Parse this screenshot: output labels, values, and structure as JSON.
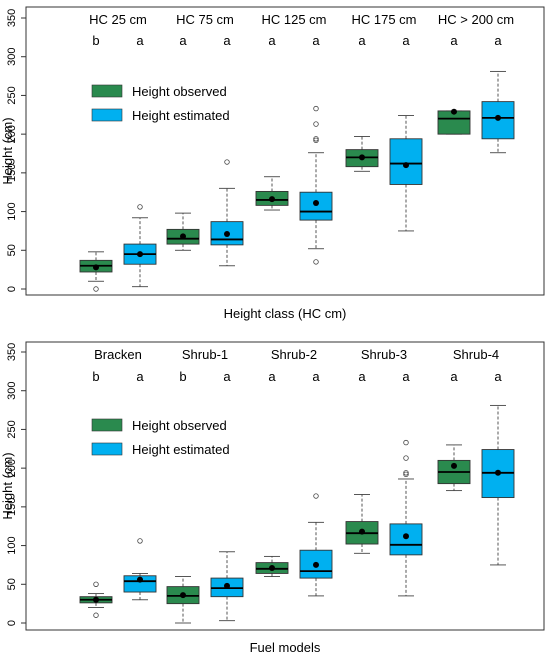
{
  "colors": {
    "observed": "#2a8a4e",
    "estimated": "#00b0f0",
    "frame": "#333333"
  },
  "chart_data": [
    {
      "type": "boxplot",
      "xlabel": "Height class (HC cm)",
      "ylabel": "Height (cm)",
      "ylim": [
        0,
        350
      ],
      "yticks": [
        0,
        50,
        100,
        150,
        200,
        250,
        300,
        350
      ],
      "categories": [
        "HC 25 cm",
        "HC 75 cm",
        "HC 125 cm",
        "HC 175 cm",
        "HC > 200 cm"
      ],
      "series": [
        {
          "name": "Height observed",
          "color_key": "observed",
          "groups": [
            {
              "letter": "b",
              "whisker_low": 10,
              "q1": 22,
              "median": 30,
              "q3": 37,
              "whisker_high": 48,
              "mean": 28,
              "outliers": [
                0
              ]
            },
            {
              "letter": "a",
              "whisker_low": 50,
              "q1": 58,
              "median": 65,
              "q3": 77,
              "whisker_high": 98,
              "mean": 68,
              "outliers": []
            },
            {
              "letter": "a",
              "whisker_low": 102,
              "q1": 108,
              "median": 115,
              "q3": 126,
              "whisker_high": 145,
              "mean": 116,
              "outliers": []
            },
            {
              "letter": "a",
              "whisker_low": 152,
              "q1": 158,
              "median": 170,
              "q3": 180,
              "whisker_high": 197,
              "mean": 170,
              "outliers": []
            },
            {
              "letter": "a",
              "whisker_low": 200,
              "q1": 200,
              "median": 220,
              "q3": 230,
              "whisker_high": 230,
              "mean": 229,
              "outliers": []
            }
          ]
        },
        {
          "name": "Height estimated",
          "color_key": "estimated",
          "groups": [
            {
              "letter": "a",
              "whisker_low": 3,
              "q1": 32,
              "median": 45,
              "q3": 58,
              "whisker_high": 92,
              "mean": 45,
              "outliers": [
                106
              ]
            },
            {
              "letter": "a",
              "whisker_low": 30,
              "q1": 57,
              "median": 64,
              "q3": 87,
              "whisker_high": 130,
              "mean": 71,
              "outliers": [
                164
              ]
            },
            {
              "letter": "a",
              "whisker_low": 52,
              "q1": 89,
              "median": 100,
              "q3": 125,
              "whisker_high": 176,
              "mean": 111,
              "outliers": [
                35,
                192,
                194,
                213,
                233
              ]
            },
            {
              "letter": "a",
              "whisker_low": 75,
              "q1": 135,
              "median": 162,
              "q3": 194,
              "whisker_high": 224,
              "mean": 160,
              "outliers": []
            },
            {
              "letter": "a",
              "whisker_low": 176,
              "q1": 194,
              "median": 221,
              "q3": 242,
              "whisker_high": 281,
              "mean": 221,
              "outliers": []
            }
          ]
        }
      ]
    },
    {
      "type": "boxplot",
      "xlabel": "Fuel models",
      "ylabel": "Height (cm)",
      "ylim": [
        0,
        350
      ],
      "yticks": [
        0,
        50,
        100,
        150,
        200,
        250,
        300,
        350
      ],
      "categories": [
        "Bracken",
        "Shrub-1",
        "Shrub-2",
        "Shrub-3",
        "Shrub-4"
      ],
      "series": [
        {
          "name": "Height observed",
          "color_key": "observed",
          "groups": [
            {
              "letter": "b",
              "whisker_low": 20,
              "q1": 26,
              "median": 30,
              "q3": 34,
              "whisker_high": 38,
              "mean": 30,
              "outliers": [
                10,
                50
              ]
            },
            {
              "letter": "b",
              "whisker_low": 0,
              "q1": 25,
              "median": 35,
              "q3": 47,
              "whisker_high": 60,
              "mean": 36,
              "outliers": []
            },
            {
              "letter": "a",
              "whisker_low": 60,
              "q1": 64,
              "median": 70,
              "q3": 78,
              "whisker_high": 86,
              "mean": 71,
              "outliers": []
            },
            {
              "letter": "a",
              "whisker_low": 90,
              "q1": 102,
              "median": 116,
              "q3": 131,
              "whisker_high": 166,
              "mean": 118,
              "outliers": []
            },
            {
              "letter": "a",
              "whisker_low": 171,
              "q1": 180,
              "median": 195,
              "q3": 210,
              "whisker_high": 230,
              "mean": 203,
              "outliers": []
            }
          ]
        },
        {
          "name": "Height estimated",
          "color_key": "estimated",
          "groups": [
            {
              "letter": "a",
              "whisker_low": 30,
              "q1": 40,
              "median": 54,
              "q3": 61,
              "whisker_high": 64,
              "mean": 56,
              "outliers": [
                106
              ]
            },
            {
              "letter": "a",
              "whisker_low": 3,
              "q1": 34,
              "median": 45,
              "q3": 58,
              "whisker_high": 92,
              "mean": 48,
              "outliers": []
            },
            {
              "letter": "a",
              "whisker_low": 35,
              "q1": 58,
              "median": 67,
              "q3": 94,
              "whisker_high": 130,
              "mean": 75,
              "outliers": [
                164
              ]
            },
            {
              "letter": "a",
              "whisker_low": 35,
              "q1": 88,
              "median": 101,
              "q3": 128,
              "whisker_high": 186,
              "mean": 112,
              "outliers": [
                192,
                194,
                213,
                233
              ]
            },
            {
              "letter": "a",
              "whisker_low": 75,
              "q1": 162,
              "median": 194,
              "q3": 224,
              "whisker_high": 281,
              "mean": 194,
              "outliers": []
            }
          ]
        }
      ]
    }
  ]
}
